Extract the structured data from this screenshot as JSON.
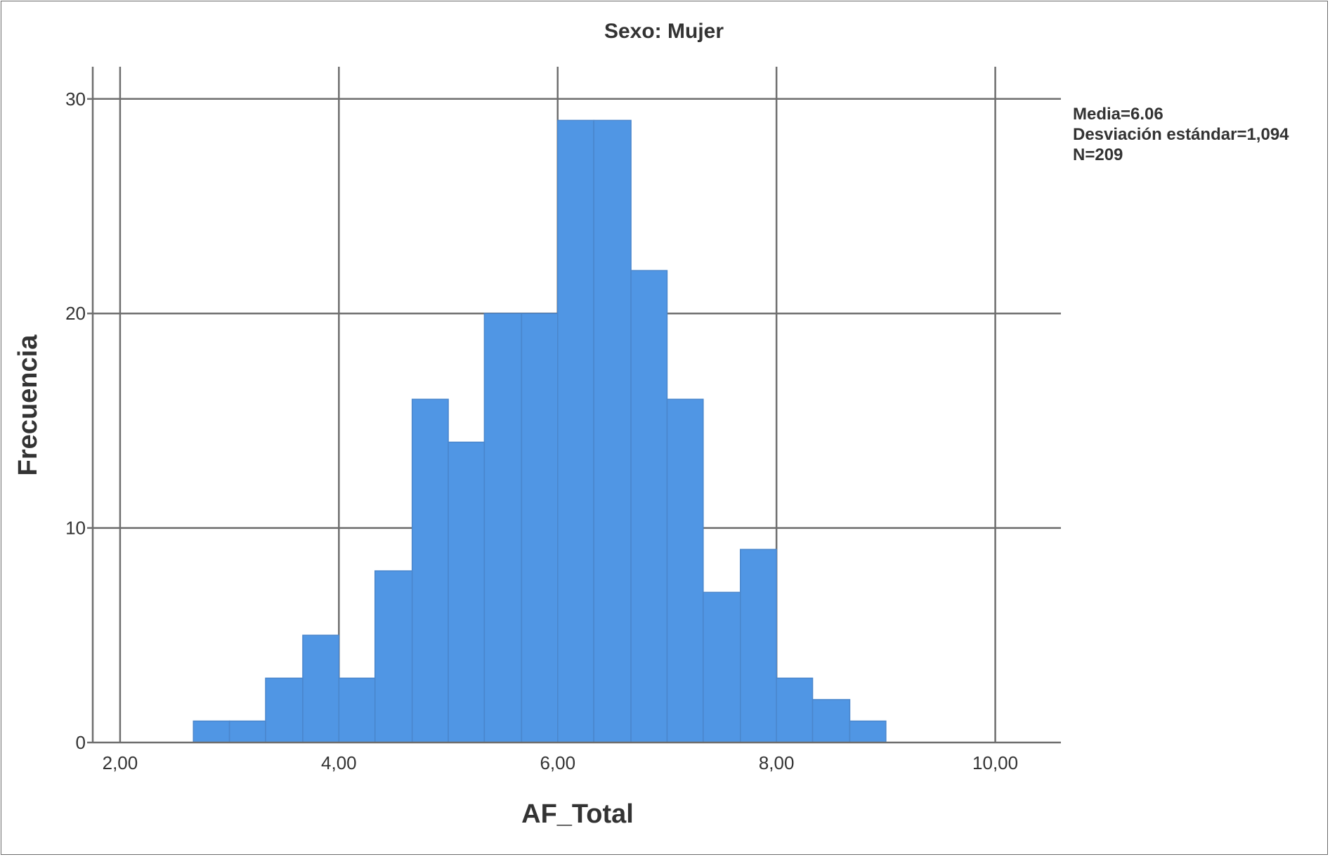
{
  "chart_data": {
    "type": "bar",
    "title": "Sexo: Mujer",
    "xlabel": "AF_Total",
    "ylabel": "Frecuencia",
    "xlim": [
      1.75,
      10.6
    ],
    "ylim": [
      0,
      31.5
    ],
    "x_ticks": [
      2,
      4,
      6,
      8,
      10
    ],
    "x_tick_labels": [
      "2,00",
      "4,00",
      "6,00",
      "8,00",
      "10,00"
    ],
    "y_ticks": [
      0,
      10,
      20,
      30
    ],
    "y_tick_labels": [
      "0",
      "10",
      "20",
      "30"
    ],
    "grid": true,
    "bar_color": "#5096e4",
    "bin_edges": [
      2.67,
      3.0,
      3.33,
      3.67,
      4.0,
      4.33,
      4.67,
      5.0,
      5.33,
      5.67,
      6.0,
      6.33,
      6.67,
      7.0,
      7.33,
      7.67,
      8.0,
      8.33,
      8.67,
      9.0
    ],
    "values": [
      1,
      1,
      3,
      5,
      3,
      8,
      16,
      14,
      20,
      20,
      29,
      29,
      22,
      16,
      7,
      9,
      3,
      2,
      1
    ],
    "stats": [
      "Media=6.06",
      "Desviación estándar=1,094",
      "N=209"
    ]
  }
}
